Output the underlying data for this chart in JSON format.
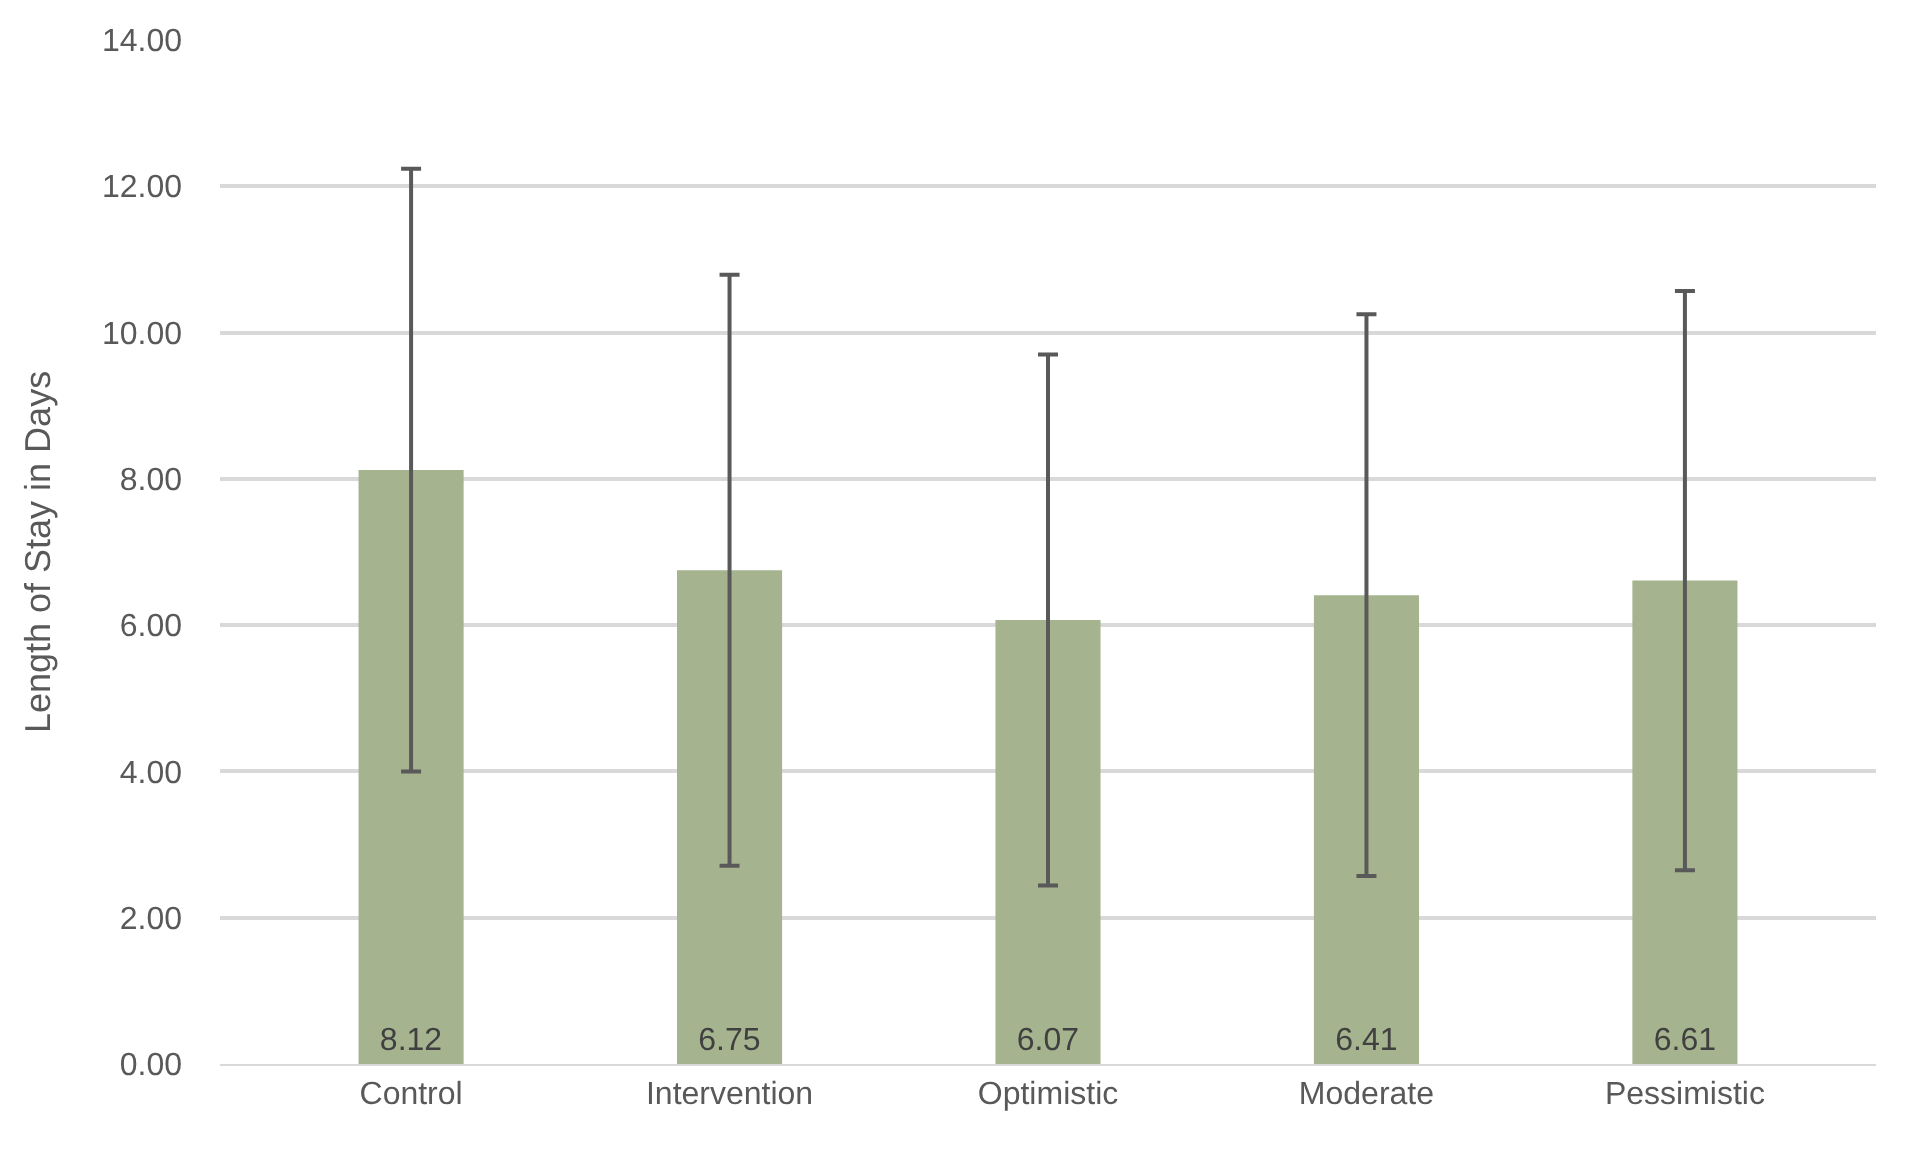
{
  "chart_data": {
    "type": "bar",
    "ylabel": "Length of Stay in Days",
    "categories": [
      "Control",
      "Intervention",
      "Optimistic",
      "Moderate",
      "Pessimistic"
    ],
    "values": [
      8.12,
      6.75,
      6.07,
      6.41,
      6.61
    ],
    "errors": [
      4.12,
      4.04,
      3.63,
      3.84,
      3.96
    ],
    "color": "#a5b48e",
    "ylim": [
      0,
      14
    ],
    "yticks": [
      {
        "value": 0,
        "label": "0.00"
      },
      {
        "value": 2,
        "label": "2.00"
      },
      {
        "value": 4,
        "label": "4.00"
      },
      {
        "value": 6,
        "label": "6.00"
      },
      {
        "value": 8,
        "label": "8.00"
      },
      {
        "value": 10,
        "label": "10.00"
      },
      {
        "value": 12,
        "label": "12.00"
      },
      {
        "value": 14,
        "label": "14.00"
      }
    ],
    "grid": "y",
    "data_labels": true
  }
}
